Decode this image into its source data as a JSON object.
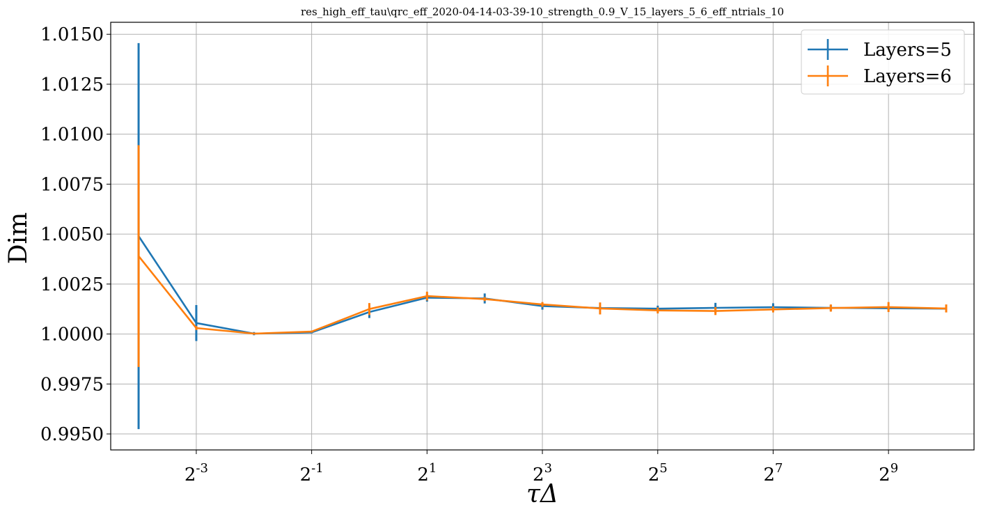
{
  "chart_data": {
    "type": "line",
    "title": "res_high_eff_tau\\qrc_eff_2020-04-14-03-39-10_strength_0.9_V_15_layers_5_6_eff_ntrials_10",
    "xlabel": "τΔ",
    "ylabel": "Dim",
    "x_scale": "log2",
    "x": [
      0.0625,
      0.125,
      0.25,
      0.5,
      1,
      2,
      4,
      8,
      16,
      32,
      64,
      128,
      256,
      512,
      1024
    ],
    "x_ticks": [
      {
        "value": 0.125,
        "base": "2",
        "exp": "-3"
      },
      {
        "value": 0.5,
        "base": "2",
        "exp": "-1"
      },
      {
        "value": 2,
        "base": "2",
        "exp": "1"
      },
      {
        "value": 8,
        "base": "2",
        "exp": "3"
      },
      {
        "value": 32,
        "base": "2",
        "exp": "5"
      },
      {
        "value": 128,
        "base": "2",
        "exp": "7"
      },
      {
        "value": 512,
        "base": "2",
        "exp": "9"
      }
    ],
    "y_ticks": [
      "0.9950",
      "0.9975",
      "1.0000",
      "1.0025",
      "1.0050",
      "1.0075",
      "1.0100",
      "1.0125",
      "1.0150"
    ],
    "xlim": [
      0.0447,
      1431
    ],
    "ylim": [
      0.9942,
      1.0156
    ],
    "grid": true,
    "legend_position": "top-right",
    "series": [
      {
        "name": "Layers=5",
        "color": "#1f77b4",
        "values": [
          1.0049,
          1.00055,
          1.00002,
          1.00008,
          1.0011,
          1.00182,
          1.00178,
          1.0014,
          1.0013,
          1.00127,
          1.00131,
          1.00134,
          1.00131,
          1.00129,
          1.00127
        ],
        "errors": [
          0.00966,
          0.0009,
          8e-05,
          5e-05,
          0.0003,
          0.0002,
          0.00025,
          0.00018,
          8e-05,
          0.00015,
          0.00025,
          0.0002,
          0.00015,
          0.0001,
          0.0001
        ]
      },
      {
        "name": "Layers=6",
        "color": "#ff7f0e",
        "values": [
          1.0039,
          1.0003,
          1.00002,
          1.00012,
          1.00125,
          1.0019,
          1.00175,
          1.00148,
          1.00128,
          1.00118,
          1.00115,
          1.00123,
          1.0013,
          1.00135,
          1.00128
        ],
        "errors": [
          0.00555,
          0.0001,
          5e-05,
          5e-05,
          0.0003,
          0.00022,
          0.0001,
          0.00012,
          0.0003,
          0.00015,
          0.0002,
          0.00015,
          0.00018,
          0.00025,
          0.0002
        ]
      }
    ]
  }
}
